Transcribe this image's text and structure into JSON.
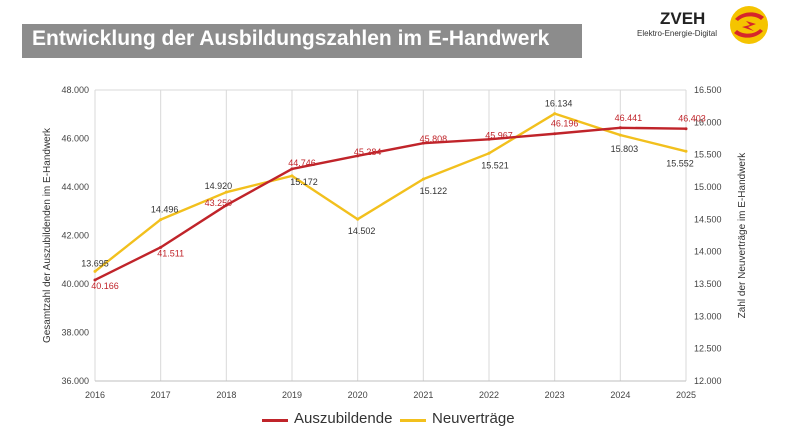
{
  "header": {
    "title": "Entwicklung der Ausbildungszahlen im E-Handwerk"
  },
  "logo": {
    "name": "ZVEH",
    "tagline": "Elektro-Energie-Digital",
    "emblem_icon": "lightning-swirl-icon",
    "colors": {
      "circle": "#f5c400",
      "bolt": "#d6262b"
    }
  },
  "chart_data": {
    "type": "line",
    "x": [
      "2016",
      "2017",
      "2018",
      "2019",
      "2020",
      "2021",
      "2022",
      "2023",
      "2024",
      "2025"
    ],
    "series": [
      {
        "name": "Auszubildende",
        "axis": "left",
        "color": "#c0242a",
        "values": [
          40166,
          41511,
          43250,
          44746,
          45284,
          45808,
          45967,
          46196,
          46441,
          46403
        ],
        "labels": [
          "40.166",
          "41.511",
          "43.250",
          "44.746",
          "45.284",
          "45.808",
          "45.967",
          "46.196",
          "46.441",
          "46.403"
        ]
      },
      {
        "name": "Neuverträge",
        "axis": "right",
        "color": "#f2c01d",
        "values": [
          13695,
          14496,
          14920,
          15172,
          14502,
          15122,
          15521,
          16134,
          15803,
          15552
        ],
        "labels": [
          "13.695",
          "14.496",
          "14.920",
          "15.172",
          "14.502",
          "15.122",
          "15.521",
          "16.134",
          "15.803",
          "15.552"
        ]
      }
    ],
    "ylabel": "Gesamtzahl der Auszubildenden im E-Handwerk",
    "y2label": "Zahl der Neuverträge im E-Handwerk",
    "ylim": [
      36000,
      48000
    ],
    "y2lim": [
      12000,
      16500
    ],
    "yticks": [
      "36.000",
      "38.000",
      "40.000",
      "42.000",
      "44.000",
      "46.000",
      "48.000"
    ],
    "y2ticks": [
      "12.000",
      "12.500",
      "13.000",
      "13.500",
      "14.000",
      "14.500",
      "15.000",
      "15.500",
      "16.000",
      "16.500"
    ],
    "grid": "vertical",
    "legend_position": "bottom"
  }
}
